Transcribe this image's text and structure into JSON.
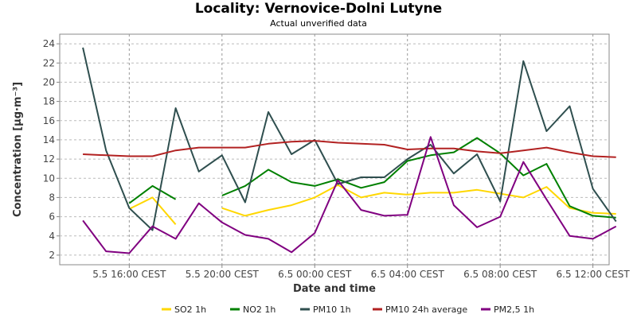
{
  "chart_data": {
    "type": "line",
    "title": "Locality: Vernovice-Dolni Lutyne",
    "subtitle": "Actual unverified data",
    "xlabel": "Date and time",
    "ylabel": "Concentration [µg·m⁻³]",
    "ylim": [
      1,
      25
    ],
    "xlim": [
      13.0,
      36.7
    ],
    "y_ticks": [
      2,
      4,
      6,
      8,
      10,
      12,
      14,
      16,
      18,
      20,
      22,
      24
    ],
    "x_ticks": [
      {
        "value": 16,
        "label": "5.5 16:00 CEST"
      },
      {
        "value": 20,
        "label": "5.5 20:00 CEST"
      },
      {
        "value": 24,
        "label": "6.5 00:00 CEST"
      },
      {
        "value": 28,
        "label": "6.5 04:00 CEST"
      },
      {
        "value": 32,
        "label": "6.5 08:00 CEST"
      },
      {
        "value": 36,
        "label": "6.5 12:00 CEST"
      }
    ],
    "grid": true,
    "legend_position": "bottom",
    "series": [
      {
        "name": "SO2 1h",
        "color": "#ffd700",
        "points": [
          [
            14,
            null
          ],
          [
            15,
            null
          ],
          [
            16,
            6.8
          ],
          [
            17,
            8.0
          ],
          [
            18,
            5.2
          ],
          [
            19,
            null
          ],
          [
            20,
            6.9
          ],
          [
            21,
            6.1
          ],
          [
            22,
            6.7
          ],
          [
            23,
            7.2
          ],
          [
            24,
            8.0
          ],
          [
            25,
            9.3
          ],
          [
            26,
            8.0
          ],
          [
            27,
            8.5
          ],
          [
            28,
            8.3
          ],
          [
            29,
            8.5
          ],
          [
            30,
            8.5
          ],
          [
            31,
            8.8
          ],
          [
            32,
            8.4
          ],
          [
            33,
            8.0
          ],
          [
            34,
            9.1
          ],
          [
            35,
            6.9
          ],
          [
            36,
            6.4
          ],
          [
            37,
            6.3
          ]
        ]
      },
      {
        "name": "NO2 1h",
        "color": "#008000",
        "points": [
          [
            14,
            null
          ],
          [
            15,
            null
          ],
          [
            16,
            7.4
          ],
          [
            17,
            9.2
          ],
          [
            18,
            7.8
          ],
          [
            19,
            null
          ],
          [
            20,
            8.2
          ],
          [
            21,
            9.2
          ],
          [
            22,
            10.9
          ],
          [
            23,
            9.6
          ],
          [
            24,
            9.2
          ],
          [
            25,
            9.9
          ],
          [
            26,
            9.0
          ],
          [
            27,
            9.6
          ],
          [
            28,
            11.8
          ],
          [
            29,
            12.4
          ],
          [
            30,
            12.7
          ],
          [
            31,
            14.2
          ],
          [
            32,
            12.6
          ],
          [
            33,
            10.3
          ],
          [
            34,
            11.5
          ],
          [
            35,
            7.1
          ],
          [
            36,
            6.1
          ],
          [
            37,
            5.9
          ]
        ]
      },
      {
        "name": "PM10 1h",
        "color": "#2f4f4f",
        "points": [
          [
            14,
            23.6
          ],
          [
            15,
            12.9
          ],
          [
            16,
            6.9
          ],
          [
            17,
            4.6
          ],
          [
            18,
            17.3
          ],
          [
            19,
            10.7
          ],
          [
            20,
            12.4
          ],
          [
            21,
            7.5
          ],
          [
            22,
            16.9
          ],
          [
            23,
            12.5
          ],
          [
            24,
            14.0
          ],
          [
            25,
            9.4
          ],
          [
            26,
            10.1
          ],
          [
            27,
            10.1
          ],
          [
            28,
            12.0
          ],
          [
            29,
            13.5
          ],
          [
            30,
            10.5
          ],
          [
            31,
            12.5
          ],
          [
            32,
            7.6
          ],
          [
            33,
            22.2
          ],
          [
            34,
            14.9
          ],
          [
            35,
            17.5
          ],
          [
            36,
            8.9
          ],
          [
            37,
            5.5
          ]
        ]
      },
      {
        "name": "PM10 24h average",
        "color": "#b22222",
        "points": [
          [
            14,
            12.5
          ],
          [
            15,
            12.4
          ],
          [
            16,
            12.3
          ],
          [
            17,
            12.3
          ],
          [
            18,
            12.9
          ],
          [
            19,
            13.2
          ],
          [
            20,
            13.2
          ],
          [
            21,
            13.2
          ],
          [
            22,
            13.6
          ],
          [
            23,
            13.8
          ],
          [
            24,
            13.9
          ],
          [
            25,
            13.7
          ],
          [
            26,
            13.6
          ],
          [
            27,
            13.5
          ],
          [
            28,
            13.0
          ],
          [
            29,
            13.1
          ],
          [
            30,
            13.1
          ],
          [
            31,
            12.8
          ],
          [
            32,
            12.6
          ],
          [
            33,
            12.9
          ],
          [
            34,
            13.2
          ],
          [
            35,
            12.7
          ],
          [
            36,
            12.3
          ],
          [
            37,
            12.2
          ]
        ]
      },
      {
        "name": "PM2,5 1h",
        "color": "#800080",
        "points": [
          [
            14,
            5.6
          ],
          [
            15,
            2.4
          ],
          [
            16,
            2.2
          ],
          [
            17,
            5.0
          ],
          [
            18,
            3.7
          ],
          [
            19,
            7.4
          ],
          [
            20,
            5.4
          ],
          [
            21,
            4.1
          ],
          [
            22,
            3.7
          ],
          [
            23,
            2.3
          ],
          [
            24,
            4.3
          ],
          [
            25,
            9.8
          ],
          [
            26,
            6.7
          ],
          [
            27,
            6.1
          ],
          [
            28,
            6.2
          ],
          [
            29,
            14.3
          ],
          [
            30,
            7.2
          ],
          [
            31,
            4.9
          ],
          [
            32,
            6.0
          ],
          [
            33,
            11.7
          ],
          [
            34,
            7.8
          ],
          [
            35,
            4.0
          ],
          [
            36,
            3.7
          ],
          [
            37,
            5.0
          ]
        ]
      }
    ]
  }
}
